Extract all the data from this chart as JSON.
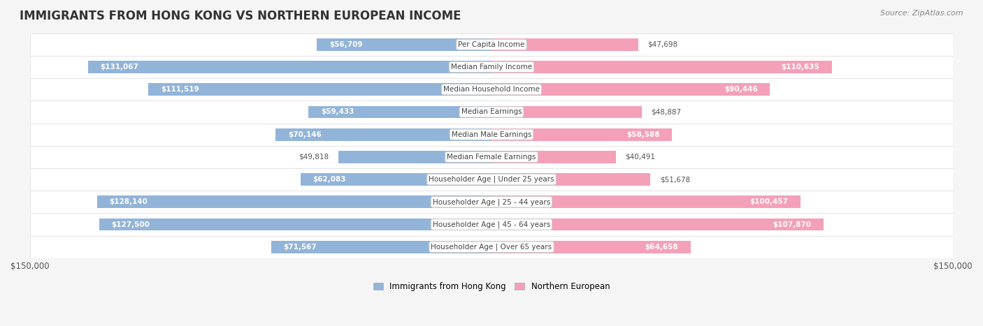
{
  "title": "IMMIGRANTS FROM HONG KONG VS NORTHERN EUROPEAN INCOME",
  "source": "Source: ZipAtlas.com",
  "categories": [
    "Per Capita Income",
    "Median Family Income",
    "Median Household Income",
    "Median Earnings",
    "Median Male Earnings",
    "Median Female Earnings",
    "Householder Age | Under 25 years",
    "Householder Age | 25 - 44 years",
    "Householder Age | 45 - 64 years",
    "Householder Age | Over 65 years"
  ],
  "hk_values": [
    56709,
    131067,
    111519,
    59433,
    70146,
    49818,
    62083,
    128140,
    127500,
    71567
  ],
  "ne_values": [
    47698,
    110635,
    90446,
    48887,
    58588,
    40491,
    51678,
    100457,
    107870,
    64658
  ],
  "hk_labels": [
    "$56,709",
    "$131,067",
    "$111,519",
    "$59,433",
    "$70,146",
    "$49,818",
    "$62,083",
    "$128,140",
    "$127,500",
    "$71,567"
  ],
  "ne_labels": [
    "$47,698",
    "$110,635",
    "$90,446",
    "$48,887",
    "$58,588",
    "$40,491",
    "$51,678",
    "$100,457",
    "$107,870",
    "$64,658"
  ],
  "hk_color": "#92b4d8",
  "hk_color_dark": "#6699cc",
  "ne_color": "#f4a0b8",
  "ne_color_dark": "#e87fa0",
  "max_val": 150000,
  "bg_color": "#f5f5f5",
  "row_bg": "#ffffff",
  "row_alt": "#f0f0f0",
  "label_color_inside": "#ffffff",
  "label_color_outside": "#555555"
}
